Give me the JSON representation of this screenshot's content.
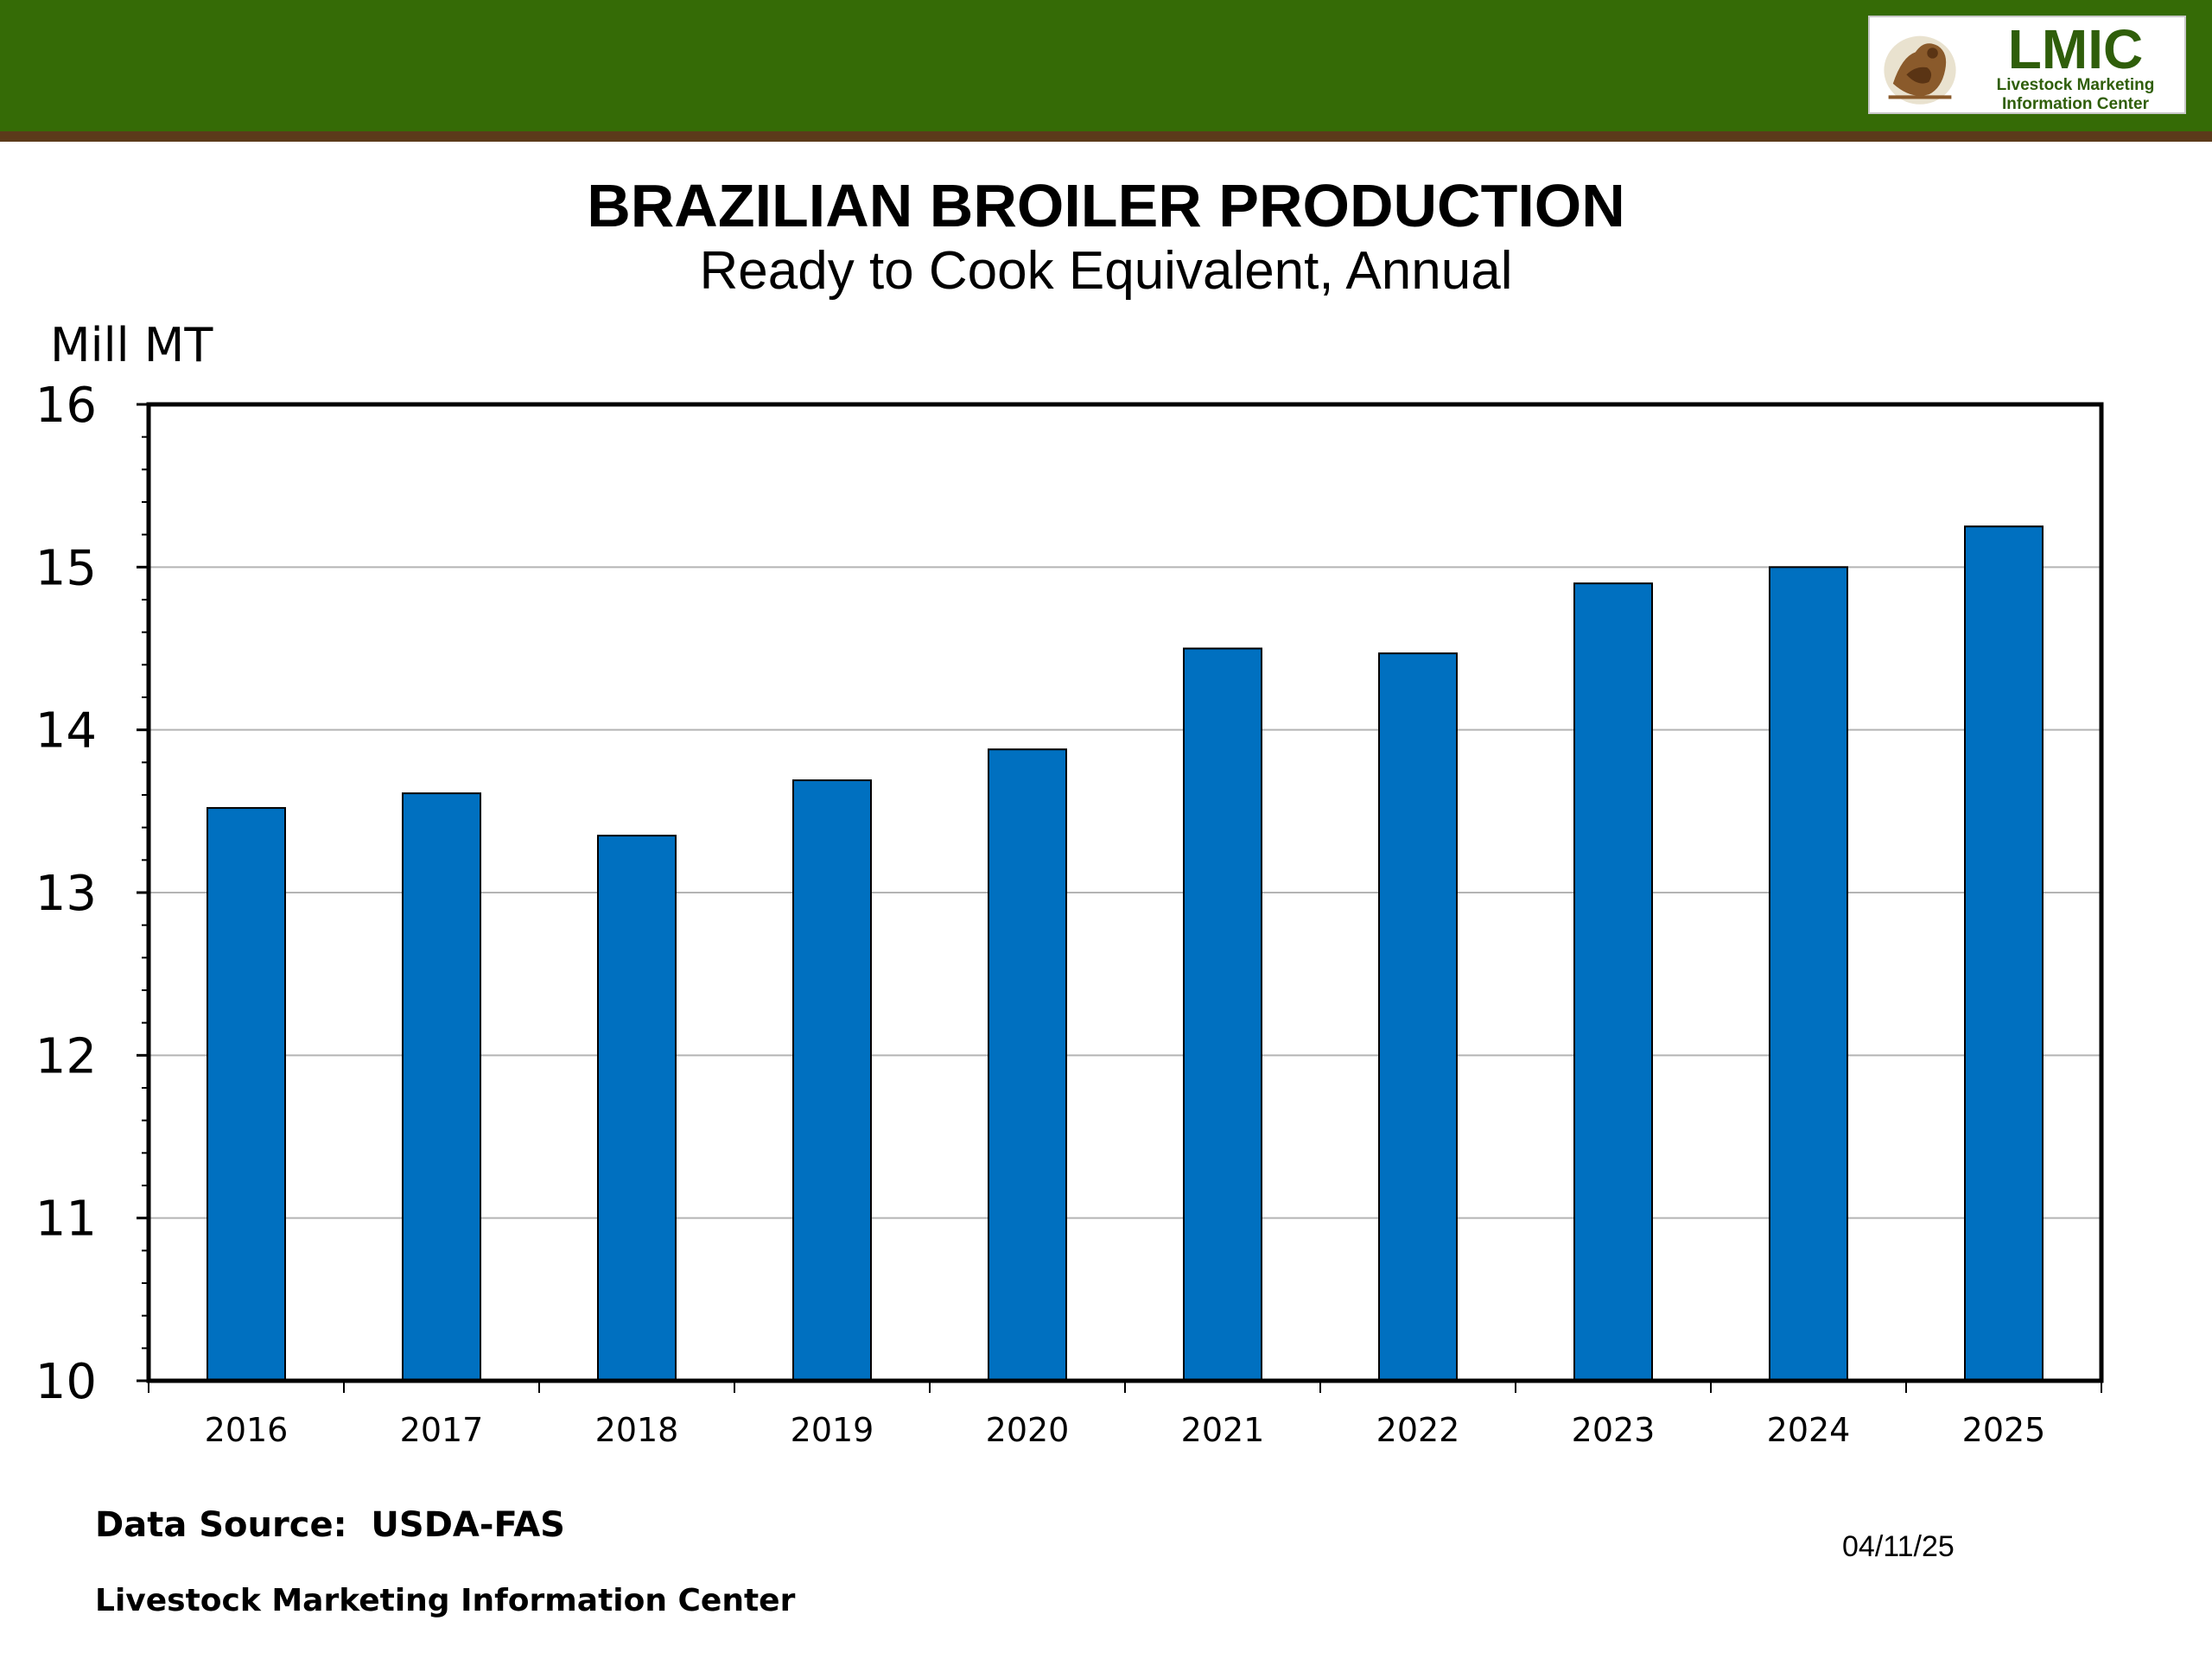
{
  "header": {
    "logo": {
      "name": "LMIC",
      "subtitle": "Livestock Marketing\nInformation Center",
      "icon": "cattle-emblem-icon"
    },
    "colors": {
      "band": "#356b06",
      "rule": "#5b3a1a",
      "logo_text": "#2f5e0a"
    }
  },
  "footer": {
    "data_source": "Data Source:  USDA-FAS",
    "organization": "Livestock Marketing Information Center",
    "date": "04/11/25"
  },
  "chart_data": {
    "type": "bar",
    "title": "BRAZILIAN BROILER PRODUCTION",
    "subtitle": "Ready to Cook Equivalent, Annual",
    "ylabel": "Mill MT",
    "xlabel": "",
    "categories": [
      "2016",
      "2017",
      "2018",
      "2019",
      "2020",
      "2021",
      "2022",
      "2023",
      "2024",
      "2025"
    ],
    "values": [
      13.52,
      13.61,
      13.35,
      13.69,
      13.88,
      14.5,
      14.47,
      14.9,
      15.0,
      15.25
    ],
    "ylim": [
      10,
      16
    ],
    "yticks": [
      10,
      11,
      12,
      13,
      14,
      15,
      16
    ],
    "grid": true,
    "legend": "none",
    "bar_color": "#0070c0"
  }
}
